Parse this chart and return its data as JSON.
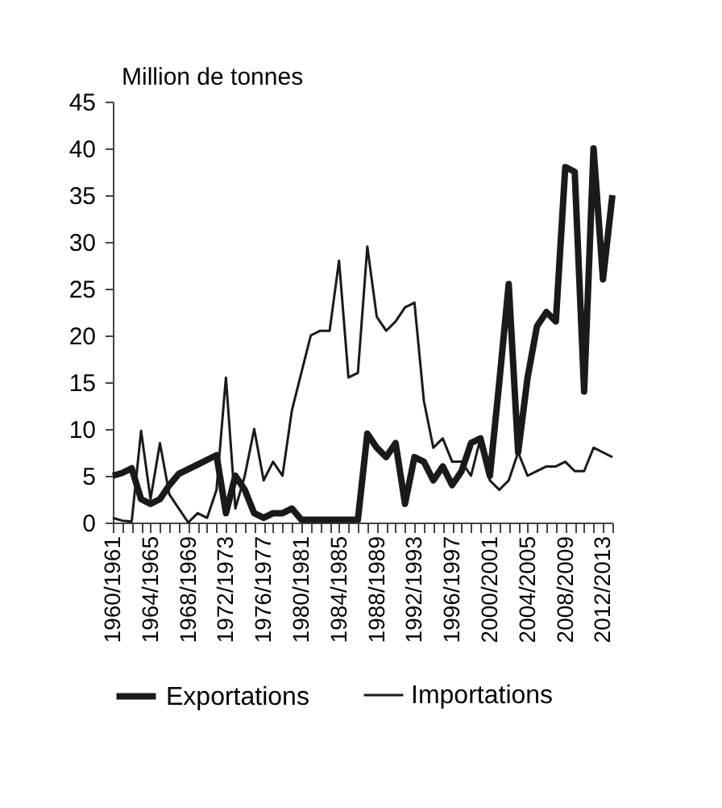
{
  "chart_data": {
    "type": "line",
    "ylabel": "Million de tonnes",
    "categories": [
      "1960/1961",
      null,
      null,
      null,
      "1964/1965",
      null,
      null,
      null,
      "1968/1969",
      null,
      null,
      null,
      "1972/1973",
      null,
      null,
      null,
      "1976/1977",
      null,
      null,
      null,
      "1980/1981",
      null,
      null,
      null,
      "1984/1985",
      null,
      null,
      null,
      "1988/1989",
      null,
      null,
      null,
      "1992/1993",
      null,
      null,
      null,
      "1996/1997",
      null,
      null,
      null,
      "2000/2001",
      null,
      null,
      null,
      "2004/2005",
      null,
      null,
      null,
      "2008/2009",
      null,
      null,
      null,
      "2012/2013",
      null
    ],
    "series": [
      {
        "name": "Exportations",
        "color": "#1a1a1a",
        "values": [
          5,
          5.3,
          5.8,
          2.5,
          2,
          2.5,
          4,
          5.2,
          5.7,
          6.2,
          6.7,
          7.2,
          1,
          5,
          3.5,
          1,
          0.5,
          1,
          1,
          1.5,
          0.3,
          0.3,
          0.3,
          0.3,
          0.3,
          0.3,
          0.3,
          9.5,
          8,
          7,
          8.5,
          2,
          7,
          6.5,
          4.5,
          6,
          4,
          5.5,
          8.5,
          9,
          5,
          15,
          25.5,
          7.5,
          15.5,
          21,
          22.5,
          21.5,
          38,
          37.5,
          14,
          40,
          26,
          35
        ]
      },
      {
        "name": "Importations",
        "color": "#1a1a1a",
        "values": [
          0.5,
          0.2,
          0.1,
          9.8,
          2.5,
          8.5,
          3,
          1.5,
          0,
          1,
          0.5,
          3.5,
          15.5,
          1.5,
          5,
          10,
          4.5,
          6.5,
          5,
          12,
          16,
          20,
          20.5,
          20.5,
          28,
          15.5,
          16,
          29.5,
          22,
          20.5,
          21.5,
          23,
          23.5,
          13,
          8,
          9,
          6.5,
          6.5,
          5,
          9,
          4.5,
          3.5,
          4.5,
          7.5,
          5,
          5.5,
          6,
          6,
          6.5,
          5.5,
          5.5,
          8,
          7.5,
          7
        ]
      }
    ],
    "ylim": [
      0,
      45
    ],
    "yticks": [
      0,
      5,
      10,
      15,
      20,
      25,
      30,
      35,
      40,
      45
    ],
    "grid": false,
    "legend": "bottom"
  }
}
